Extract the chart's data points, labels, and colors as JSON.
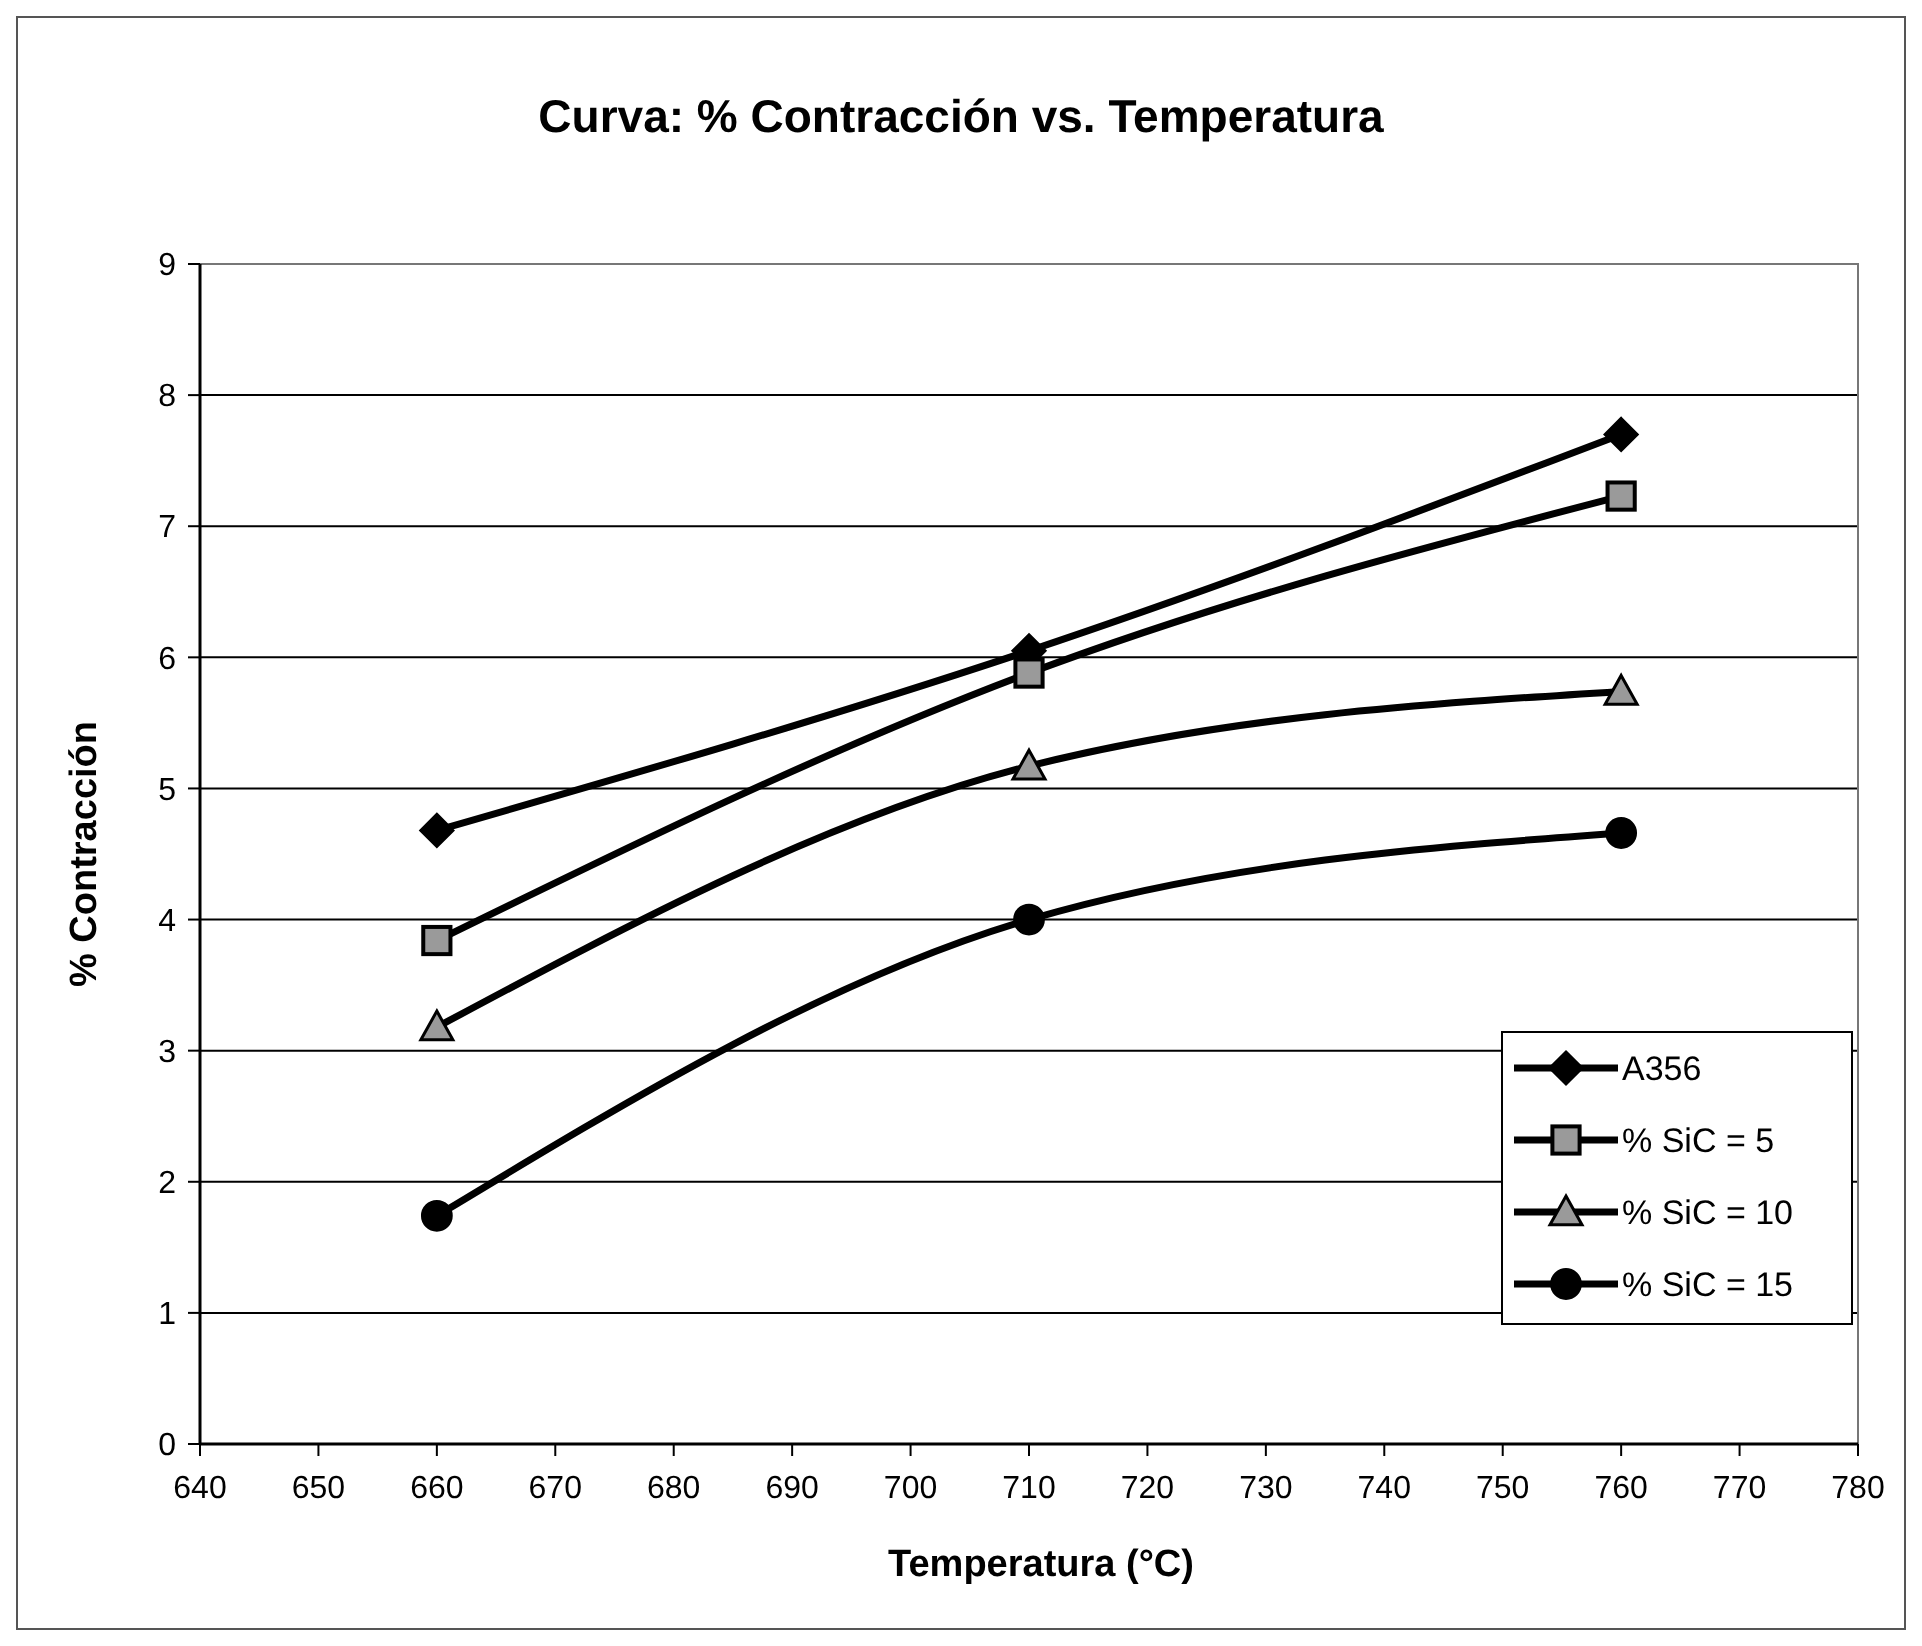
{
  "chart_data": {
    "type": "line",
    "title": "Curva: % Contracción vs. Temperatura",
    "xlabel": "Temperatura (°C)",
    "ylabel": "% Contracción",
    "x": [
      660,
      710,
      760
    ],
    "series": [
      {
        "name": "A356",
        "color": "#000000",
        "marker": "diamond",
        "values": [
          4.68,
          6.05,
          7.7
        ]
      },
      {
        "name": "% SiC = 5",
        "color": "#000000",
        "marker": "square",
        "values": [
          3.84,
          5.88,
          7.23
        ]
      },
      {
        "name": "% SiC = 10",
        "color": "#000000",
        "marker": "triangle",
        "values": [
          3.18,
          5.17,
          5.74
        ]
      },
      {
        "name": "% SiC = 15",
        "color": "#000000",
        "marker": "circle",
        "values": [
          1.74,
          4.0,
          4.66
        ]
      }
    ],
    "xlim": [
      640,
      780
    ],
    "xticks": [
      640,
      650,
      660,
      670,
      680,
      690,
      700,
      710,
      720,
      730,
      740,
      750,
      760,
      770,
      780
    ],
    "ylim": [
      0,
      9
    ],
    "yticks": [
      0,
      1,
      2,
      3,
      4,
      5,
      6,
      7,
      8,
      9
    ],
    "grid": "y",
    "legend": "bottom right",
    "line_style": "solid"
  }
}
